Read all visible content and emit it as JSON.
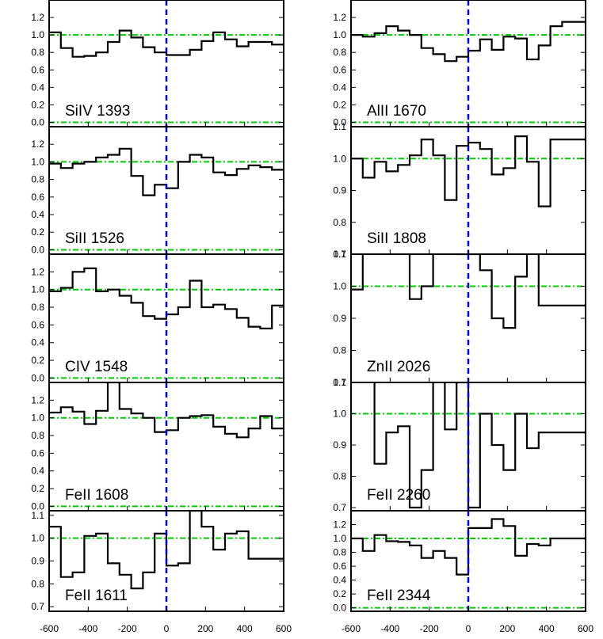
{
  "colors": {
    "spectrum": "#000000",
    "continuum": "#00cc00",
    "zero_velocity": "#0000cc",
    "frame": "#000000"
  },
  "xaxis": {
    "ticks": [
      -600,
      -400,
      -200,
      0,
      200,
      400,
      600
    ],
    "tick_labels": [
      "-600",
      "-400",
      "-200",
      "0",
      "200",
      "400",
      "600"
    ]
  },
  "chart_data": [
    {
      "type": "line",
      "step": true,
      "label": "SiIV 1393",
      "ylim": [
        -0.05,
        1.4
      ],
      "yticks": [
        "0.0",
        "0.2",
        "0.4",
        "0.6",
        "0.8",
        "1.0",
        "1.2"
      ],
      "x": [
        -600,
        -540,
        -480,
        -420,
        -360,
        -300,
        -240,
        -180,
        -120,
        -60,
        0,
        60,
        120,
        180,
        240,
        300,
        360,
        420,
        480,
        540,
        600
      ],
      "y": [
        1.03,
        0.85,
        0.75,
        0.76,
        0.8,
        0.92,
        1.05,
        0.97,
        0.86,
        0.8,
        0.77,
        0.77,
        0.83,
        0.93,
        1.03,
        0.95,
        0.87,
        0.92,
        0.92,
        0.89,
        0.89
      ],
      "continuum": [
        0.0,
        1.0
      ],
      "xlim": [
        -600,
        600
      ]
    },
    {
      "type": "line",
      "step": true,
      "label": "SiII 1526",
      "ylim": [
        -0.05,
        1.4
      ],
      "yticks": [
        "0.0",
        "0.2",
        "0.4",
        "0.6",
        "0.8",
        "1.0",
        "1.2"
      ],
      "x": [
        -600,
        -540,
        -480,
        -420,
        -360,
        -300,
        -240,
        -180,
        -120,
        -60,
        0,
        60,
        120,
        180,
        240,
        300,
        360,
        420,
        480,
        540,
        600
      ],
      "y": [
        0.98,
        0.93,
        0.98,
        1.0,
        1.05,
        1.08,
        1.15,
        0.84,
        0.62,
        0.74,
        0.7,
        1.0,
        1.08,
        1.05,
        0.88,
        0.85,
        0.92,
        0.96,
        0.94,
        0.91,
        0.91
      ],
      "continuum": [
        0.0,
        1.0
      ],
      "xlim": [
        -600,
        600
      ]
    },
    {
      "type": "line",
      "step": true,
      "label": "CIV 1548",
      "ylim": [
        -0.05,
        1.4
      ],
      "yticks": [
        "0.0",
        "0.2",
        "0.4",
        "0.6",
        "0.8",
        "1.0",
        "1.2"
      ],
      "x": [
        -600,
        -540,
        -480,
        -420,
        -360,
        -300,
        -240,
        -180,
        -120,
        -60,
        0,
        60,
        120,
        180,
        240,
        300,
        360,
        420,
        480,
        540,
        600
      ],
      "y": [
        0.98,
        1.02,
        1.2,
        1.24,
        0.98,
        1.0,
        0.93,
        0.85,
        0.7,
        0.67,
        0.72,
        0.8,
        1.1,
        0.8,
        0.83,
        0.78,
        0.68,
        0.58,
        0.56,
        0.82,
        0.82
      ],
      "continuum": [
        0.0,
        1.0
      ],
      "xlim": [
        -600,
        600
      ]
    },
    {
      "type": "line",
      "step": true,
      "label": "FeII 1608",
      "ylim": [
        -0.05,
        1.4
      ],
      "yticks": [
        "0.0",
        "0.2",
        "0.4",
        "0.6",
        "0.8",
        "1.0",
        "1.2"
      ],
      "x": [
        -600,
        -540,
        -480,
        -420,
        -360,
        -300,
        -240,
        -180,
        -120,
        -60,
        0,
        60,
        120,
        180,
        240,
        300,
        360,
        420,
        480,
        540,
        600
      ],
      "y": [
        1.06,
        1.12,
        1.07,
        0.93,
        1.08,
        1.4,
        1.1,
        1.05,
        1.0,
        0.84,
        0.86,
        1.0,
        1.02,
        1.03,
        0.9,
        0.82,
        0.78,
        0.88,
        1.02,
        0.88,
        0.88
      ],
      "continuum": [
        0.0,
        1.0
      ],
      "xlim": [
        -600,
        600
      ]
    },
    {
      "type": "line",
      "step": true,
      "label": "FeII 1611",
      "ylim": [
        0.68,
        1.12
      ],
      "yticks": [
        "0.7",
        "0.8",
        "0.9",
        "1.0",
        "1.1"
      ],
      "x": [
        -600,
        -540,
        -480,
        -420,
        -360,
        -300,
        -240,
        -180,
        -120,
        -60,
        0,
        60,
        120,
        180,
        240,
        300,
        360,
        420,
        480,
        540,
        600
      ],
      "y": [
        1.05,
        0.83,
        0.85,
        1.01,
        1.02,
        0.89,
        0.84,
        0.78,
        0.85,
        1.02,
        0.88,
        0.89,
        1.12,
        1.05,
        0.95,
        1.02,
        1.03,
        0.91,
        0.91,
        0.91,
        0.91
      ],
      "continuum": [
        0.0,
        1.0
      ],
      "xlim": [
        -600,
        600
      ]
    },
    {
      "type": "line",
      "step": true,
      "label": "AlII 1670",
      "ylim": [
        -0.05,
        1.4
      ],
      "yticks": [
        "0.0",
        "0.2",
        "0.4",
        "0.6",
        "0.8",
        "1.0",
        "1.2"
      ],
      "x": [
        -600,
        -540,
        -480,
        -420,
        -360,
        -300,
        -240,
        -180,
        -120,
        -60,
        0,
        60,
        120,
        180,
        240,
        300,
        360,
        420,
        480,
        540,
        600
      ],
      "y": [
        1.0,
        0.98,
        1.02,
        1.1,
        1.05,
        1.0,
        0.85,
        0.78,
        0.7,
        0.75,
        0.82,
        0.95,
        0.83,
        0.98,
        0.96,
        0.72,
        0.88,
        1.1,
        1.15,
        1.15,
        1.15
      ],
      "continuum": [
        0.0,
        1.0
      ],
      "xlim": [
        -600,
        600
      ]
    },
    {
      "type": "line",
      "step": true,
      "label": "SiII 1808",
      "ylim": [
        0.7,
        1.1
      ],
      "yticks": [
        "0.7",
        "0.8",
        "0.9",
        "1.0",
        "1.1"
      ],
      "x": [
        -600,
        -540,
        -480,
        -420,
        -360,
        -300,
        -240,
        -180,
        -120,
        -60,
        0,
        60,
        120,
        180,
        240,
        300,
        360,
        420,
        480,
        540,
        600
      ],
      "y": [
        1.0,
        0.94,
        0.99,
        0.96,
        0.98,
        1.01,
        1.06,
        1.01,
        0.87,
        1.04,
        1.05,
        1.03,
        0.95,
        0.97,
        1.07,
        0.99,
        0.85,
        1.06,
        1.06,
        1.06,
        1.06
      ],
      "continuum": [
        0.0,
        1.0
      ],
      "xlim": [
        -600,
        600
      ]
    },
    {
      "type": "line",
      "step": true,
      "label": "ZnII 2026",
      "ylim": [
        0.7,
        1.1
      ],
      "yticks": [
        "0.7",
        "0.8",
        "0.9",
        "1.0",
        "1.1"
      ],
      "x": [
        -600,
        -540,
        -480,
        -420,
        -360,
        -300,
        -240,
        -180,
        -120,
        -60,
        0,
        60,
        120,
        180,
        240,
        300,
        360,
        420,
        480,
        540,
        600
      ],
      "y": [
        0.99,
        1.12,
        1.12,
        1.12,
        1.12,
        0.96,
        1.0,
        1.15,
        1.15,
        1.1,
        1.1,
        1.05,
        0.9,
        0.87,
        1.03,
        1.12,
        0.94,
        0.94,
        0.94,
        0.94,
        0.94
      ],
      "continuum": [
        0.0,
        1.0
      ],
      "xlim": [
        -600,
        600
      ]
    },
    {
      "type": "line",
      "step": true,
      "label": "FeII 2260",
      "ylim": [
        0.69,
        1.1
      ],
      "yticks": [
        "0.7",
        "0.8",
        "0.9",
        "1.0",
        "1.1"
      ],
      "x": [
        -600,
        -540,
        -480,
        -420,
        -360,
        -300,
        -240,
        -180,
        -120,
        -60,
        0,
        60,
        120,
        180,
        240,
        300,
        360,
        420,
        480,
        540,
        600
      ],
      "y": [
        1.12,
        1.12,
        0.84,
        0.94,
        0.96,
        0.7,
        0.82,
        1.12,
        0.95,
        1.1,
        0.7,
        1.0,
        0.9,
        0.82,
        1.0,
        0.89,
        0.94,
        0.94,
        0.94,
        0.94,
        0.94
      ],
      "continuum": [
        0.0,
        1.0
      ],
      "xlim": [
        -600,
        600
      ]
    },
    {
      "type": "line",
      "step": true,
      "label": "FeII 2344",
      "ylim": [
        -0.05,
        1.4
      ],
      "yticks": [
        "0.0",
        "0.2",
        "0.4",
        "0.6",
        "0.8",
        "1.0",
        "1.2"
      ],
      "x": [
        -600,
        -540,
        -480,
        -420,
        -360,
        -300,
        -240,
        -180,
        -120,
        -60,
        0,
        60,
        120,
        180,
        240,
        300,
        360,
        420,
        480,
        540,
        600
      ],
      "y": [
        1.0,
        0.82,
        1.05,
        0.96,
        0.95,
        0.9,
        0.72,
        0.82,
        0.72,
        0.48,
        1.15,
        1.15,
        1.28,
        1.18,
        0.75,
        0.92,
        0.9,
        1.0,
        1.0,
        1.0,
        1.0
      ],
      "continuum": [
        0.0,
        1.0
      ],
      "xlim": [
        -600,
        600
      ]
    }
  ]
}
